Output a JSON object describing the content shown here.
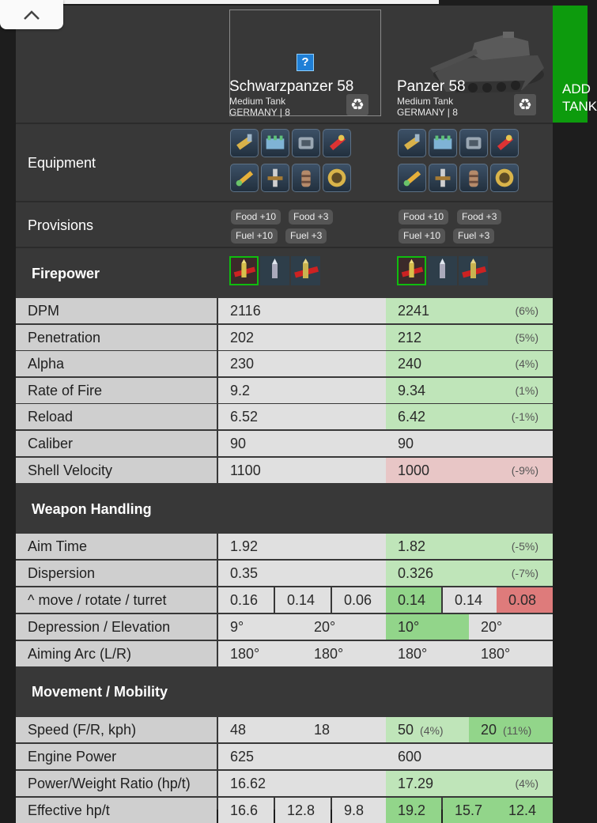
{
  "header": {
    "add_tank_label": "ADD TANK",
    "tanks": [
      {
        "name": "Schwarzpanzer 58",
        "type": "Medium Tank",
        "nation_tier": "GERMANY | 8",
        "image": "placeholder-question-icon"
      },
      {
        "name": "Panzer 58",
        "type": "Medium Tank",
        "nation_tier": "GERMANY | 8",
        "image": "tank-render"
      }
    ]
  },
  "rows": {
    "equipment": "Equipment",
    "provisions": "Provisions"
  },
  "provisions": [
    [
      "Food +10",
      "Food +3",
      "Fuel +10",
      "Fuel +3"
    ],
    [
      "Food +10",
      "Food +3",
      "Fuel +10",
      "Fuel +3"
    ]
  ],
  "sections": {
    "firepower": "Firepower",
    "weapon_handling": "Weapon Handling",
    "movement": "Movement / Mobility"
  },
  "firepower": [
    {
      "label": "DPM",
      "a": "2116",
      "b": "2241",
      "pct": "(6%)",
      "state": "better"
    },
    {
      "label": "Penetration",
      "a": "202",
      "b": "212",
      "pct": "(5%)",
      "state": "better"
    },
    {
      "label": "Alpha",
      "a": "230",
      "b": "240",
      "pct": "(4%)",
      "state": "better"
    },
    {
      "label": "Rate of Fire",
      "a": "9.2",
      "b": "9.34",
      "pct": "(1%)",
      "state": "better"
    },
    {
      "label": "Reload",
      "a": "6.52",
      "b": "6.42",
      "pct": "(-1%)",
      "state": "better"
    },
    {
      "label": "Caliber",
      "a": "90",
      "b": "90",
      "pct": "",
      "state": "equal"
    },
    {
      "label": "Shell Velocity",
      "a": "1100",
      "b": "1000",
      "pct": "(-9%)",
      "state": "worse"
    }
  ],
  "weapon_handling": {
    "aim_time": {
      "label": "Aim Time",
      "a": "1.92",
      "b": "1.82",
      "pct": "(-5%)"
    },
    "dispersion": {
      "label": "Dispersion",
      "a": "0.35",
      "b": "0.326",
      "pct": "(-7%)"
    },
    "move_rotate": {
      "label": "^ move / rotate / turret",
      "a": [
        "0.16",
        "0.14",
        "0.06"
      ],
      "b": [
        "0.14",
        "0.14",
        "0.08"
      ]
    },
    "dep_elev": {
      "label": "Depression / Elevation",
      "a": [
        "9°",
        "20°"
      ],
      "b": [
        "10°",
        "20°"
      ]
    },
    "aiming_arc": {
      "label": "Aiming Arc (L/R)",
      "a": [
        "180°",
        "180°"
      ],
      "b": [
        "180°",
        "180°"
      ]
    }
  },
  "movement": {
    "speed": {
      "label": "Speed (F/R, kph)",
      "a": [
        "48",
        "18"
      ],
      "b": [
        "50",
        "20"
      ],
      "b_pct": [
        "(4%)",
        "(11%)"
      ]
    },
    "engine": {
      "label": "Engine Power",
      "a": "625",
      "b": "600"
    },
    "pw_ratio": {
      "label": "Power/Weight Ratio (hp/t)",
      "a": "16.62",
      "b": "17.29",
      "pct": "(4%)"
    },
    "effective": {
      "label": "Effective hp/t",
      "a": [
        "16.6",
        "12.8",
        "9.8"
      ],
      "b": [
        "19.2",
        "15.7",
        "12.4"
      ]
    }
  },
  "colors": {
    "accent_green": "#0d9b0d",
    "better": "#bfe5b9",
    "worse": "#e8c6c6"
  }
}
